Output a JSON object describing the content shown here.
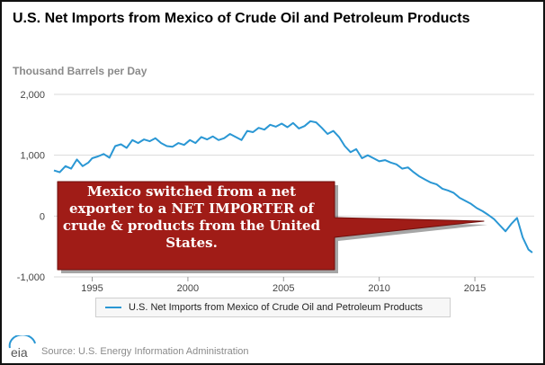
{
  "header": {
    "title": "U.S. Net Imports from Mexico of Crude Oil and Petroleum Products",
    "units_label": "Thousand Barrels per Day"
  },
  "annotation": {
    "text": "Mexico switched from a net exporter to a NET IMPORTER of crude & products from the United States."
  },
  "footer": {
    "source": "Source: U.S. Energy Information Administration",
    "logo_text": "eia"
  },
  "colors": {
    "series": "#2a97d4",
    "callout_fill": "#a01c17",
    "grid": "#d9d9d9"
  },
  "chart_data": {
    "type": "line",
    "ylabel": "Thousand Barrels per Day",
    "ylim": [
      -1000,
      2000
    ],
    "xlim": [
      1993,
      2018.1
    ],
    "y_ticks": [
      {
        "value": 2000,
        "label": "2,000"
      },
      {
        "value": 1000,
        "label": "1,000"
      },
      {
        "value": 0,
        "label": "0"
      },
      {
        "value": -1000,
        "label": "-1,000"
      }
    ],
    "x_ticks": [
      {
        "value": 1995,
        "label": "1995"
      },
      {
        "value": 2000,
        "label": "2000"
      },
      {
        "value": 2005,
        "label": "2005"
      },
      {
        "value": 2010,
        "label": "2010"
      },
      {
        "value": 2015,
        "label": "2015"
      }
    ],
    "grid": "horizontal",
    "legend_position": "bottom-center",
    "series": [
      {
        "name": "U.S. Net Imports from Mexico of Crude Oil and Petroleum Products",
        "points": [
          [
            1993.0,
            750
          ],
          [
            1993.3,
            720
          ],
          [
            1993.6,
            820
          ],
          [
            1993.9,
            780
          ],
          [
            1994.2,
            930
          ],
          [
            1994.5,
            820
          ],
          [
            1994.8,
            880
          ],
          [
            1995.0,
            950
          ],
          [
            1995.3,
            980
          ],
          [
            1995.6,
            1020
          ],
          [
            1995.9,
            960
          ],
          [
            1996.2,
            1150
          ],
          [
            1996.5,
            1180
          ],
          [
            1996.8,
            1120
          ],
          [
            1997.1,
            1250
          ],
          [
            1997.4,
            1200
          ],
          [
            1997.7,
            1260
          ],
          [
            1998.0,
            1230
          ],
          [
            1998.3,
            1280
          ],
          [
            1998.6,
            1200
          ],
          [
            1998.9,
            1150
          ],
          [
            1999.2,
            1140
          ],
          [
            1999.5,
            1200
          ],
          [
            1999.8,
            1170
          ],
          [
            2000.1,
            1250
          ],
          [
            2000.4,
            1200
          ],
          [
            2000.7,
            1300
          ],
          [
            2001.0,
            1260
          ],
          [
            2001.3,
            1310
          ],
          [
            2001.6,
            1250
          ],
          [
            2001.9,
            1280
          ],
          [
            2002.2,
            1350
          ],
          [
            2002.5,
            1300
          ],
          [
            2002.8,
            1250
          ],
          [
            2003.1,
            1400
          ],
          [
            2003.4,
            1380
          ],
          [
            2003.7,
            1450
          ],
          [
            2004.0,
            1420
          ],
          [
            2004.3,
            1500
          ],
          [
            2004.6,
            1470
          ],
          [
            2004.9,
            1520
          ],
          [
            2005.2,
            1460
          ],
          [
            2005.5,
            1530
          ],
          [
            2005.8,
            1440
          ],
          [
            2006.1,
            1480
          ],
          [
            2006.4,
            1560
          ],
          [
            2006.7,
            1540
          ],
          [
            2007.0,
            1450
          ],
          [
            2007.3,
            1350
          ],
          [
            2007.6,
            1400
          ],
          [
            2007.9,
            1300
          ],
          [
            2008.2,
            1150
          ],
          [
            2008.5,
            1050
          ],
          [
            2008.8,
            1100
          ],
          [
            2009.1,
            950
          ],
          [
            2009.4,
            1000
          ],
          [
            2009.7,
            950
          ],
          [
            2010.0,
            900
          ],
          [
            2010.3,
            920
          ],
          [
            2010.6,
            880
          ],
          [
            2010.9,
            850
          ],
          [
            2011.2,
            780
          ],
          [
            2011.5,
            800
          ],
          [
            2011.8,
            720
          ],
          [
            2012.1,
            650
          ],
          [
            2012.4,
            600
          ],
          [
            2012.7,
            550
          ],
          [
            2013.0,
            520
          ],
          [
            2013.3,
            450
          ],
          [
            2013.6,
            420
          ],
          [
            2013.9,
            380
          ],
          [
            2014.2,
            300
          ],
          [
            2014.5,
            250
          ],
          [
            2014.8,
            200
          ],
          [
            2015.1,
            130
          ],
          [
            2015.4,
            80
          ],
          [
            2015.7,
            20
          ],
          [
            2016.0,
            -50
          ],
          [
            2016.3,
            -150
          ],
          [
            2016.6,
            -250
          ],
          [
            2016.9,
            -130
          ],
          [
            2017.2,
            -30
          ],
          [
            2017.5,
            -350
          ],
          [
            2017.8,
            -550
          ],
          [
            2018.0,
            -600
          ]
        ]
      }
    ]
  }
}
